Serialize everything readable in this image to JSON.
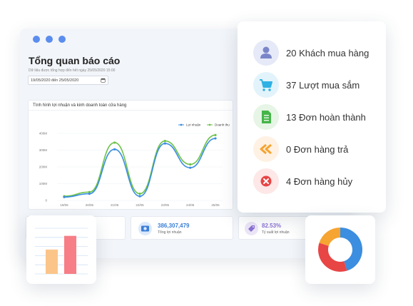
{
  "colors": {
    "blue": "#3b8ee0",
    "green": "#6cc24a",
    "window_dot": "#5b8def"
  },
  "report": {
    "title": "Tổng quan báo cáo",
    "subtitle": "Dữ liệu được tổng hợp đến hết ngày 25/05/2020 15:00",
    "date_range": "19/05/2020 đến 25/05/2020",
    "calendar_icon": "calendar-icon"
  },
  "chart_data": {
    "type": "line",
    "title": "Tình hình lợi nhuận và kinh doanh toàn cửa hàng",
    "categories": [
      "19/05",
      "20/05",
      "21/05",
      "22/05",
      "23/05",
      "24/05",
      "25/05"
    ],
    "y_ticks": [
      "0",
      "100M",
      "200M",
      "300M",
      "400M"
    ],
    "ylim": [
      0,
      400
    ],
    "grid": true,
    "legend_position": "top-right",
    "series": [
      {
        "name": "Lợi nhuận",
        "color": "#3b8ee0",
        "values": [
          20,
          40,
          305,
          25,
          340,
          195,
          370
        ]
      },
      {
        "name": "Doanh thu",
        "color": "#6cc24a",
        "values": [
          25,
          50,
          345,
          40,
          355,
          215,
          390
        ]
      }
    ]
  },
  "stats": [
    {
      "value": "",
      "label": ""
    },
    {
      "value": "386,307,479",
      "label": "Tổng lợi nhuận",
      "icon": "money-icon"
    },
    {
      "value": "82.53%",
      "label": "Tỷ suất lợi nhuận",
      "icon": "percent-tag-icon"
    }
  ],
  "summary": [
    {
      "label": "20 Khách mua hàng",
      "icon": "user-icon",
      "bg": "#e6e9f7",
      "fg": "#7b86c9"
    },
    {
      "label": "37 Lượt mua sắm",
      "icon": "cart-icon",
      "bg": "#e2f3fb",
      "fg": "#2fb1e3"
    },
    {
      "label": "13 Đơn hoàn thành",
      "icon": "document-icon",
      "bg": "#e6f5e6",
      "fg": "#45b549"
    },
    {
      "label": "0 Đơn hàng trả",
      "icon": "return-arrows-icon",
      "bg": "#fff1e3",
      "fg": "#f6a432"
    },
    {
      "label": "4 Đơn hàng hủy",
      "icon": "cancel-icon",
      "bg": "#fde7e7",
      "fg": "#e84545"
    }
  ],
  "mini_bar_chart": {
    "type": "bar",
    "values": [
      32,
      50
    ],
    "ylim": [
      0,
      60
    ],
    "colors": [
      "#fbc58a",
      "#f77e86"
    ]
  },
  "mini_donut_chart": {
    "type": "pie",
    "values": [
      45,
      35,
      20
    ],
    "colors": [
      "#3b8ee0",
      "#e84545",
      "#f6a432"
    ]
  }
}
